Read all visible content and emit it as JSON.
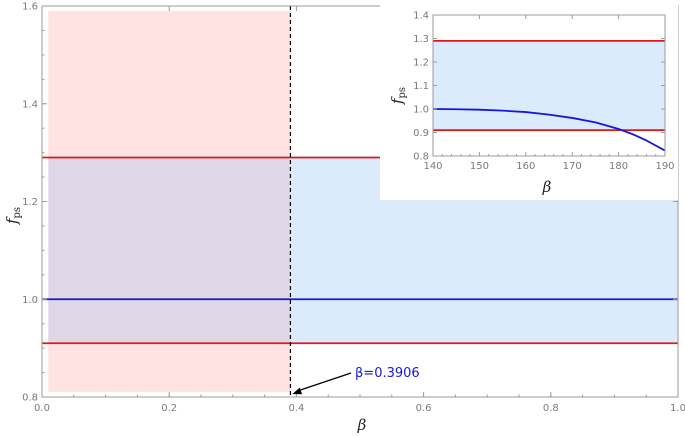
{
  "colors": {
    "pink_region": "#ffe3e3",
    "blue_region": "#dcebfb",
    "overlap_region": "#dfd7e6",
    "red_line": "#e0161b",
    "blue_line": "#1717d6",
    "axis": "#9b9b9b",
    "annotation": "#1717d6"
  },
  "chart_data": [
    {
      "id": "main",
      "type": "line",
      "xlabel": "β",
      "ylabel": "f",
      "ylabel_sub": "ps",
      "xlim": [
        0.0,
        1.0
      ],
      "ylim": [
        0.8,
        1.6
      ],
      "xticks": [
        "0.0",
        "0.2",
        "0.4",
        "0.6",
        "0.8",
        "1.0"
      ],
      "yticks": [
        "0.8",
        "1.0",
        "1.2",
        "1.4",
        "1.6"
      ],
      "shaded_regions": [
        {
          "x": [
            0.01,
            0.3906
          ],
          "y": [
            0.81,
            1.59
          ],
          "color": "pink"
        },
        {
          "x": [
            0.01,
            1.0
          ],
          "y": [
            0.91,
            1.29
          ],
          "color": "blue"
        }
      ],
      "hlines": [
        {
          "y": 1.29,
          "color": "red"
        },
        {
          "y": 0.91,
          "color": "red"
        }
      ],
      "vline": {
        "x": 0.3906,
        "style": "dashed"
      },
      "series": [
        {
          "x": [
            0.0,
            1.0
          ],
          "y": [
            1.0,
            1.0
          ],
          "color": "blue"
        }
      ],
      "annotation": {
        "label": "β=0.3906",
        "x": 0.3906,
        "y": 0.8,
        "text_at": [
          0.5,
          0.845
        ]
      }
    },
    {
      "id": "inset",
      "type": "line",
      "xlabel": "β",
      "ylabel": "f",
      "ylabel_sub": "ps",
      "xlim": [
        140,
        190
      ],
      "ylim": [
        0.8,
        1.4
      ],
      "xticks": [
        "140",
        "150",
        "160",
        "170",
        "180",
        "190"
      ],
      "yticks": [
        "0.8",
        "0.9",
        "1.0",
        "1.1",
        "1.2",
        "1.3",
        "1.4"
      ],
      "shaded_region": {
        "y": [
          0.91,
          1.29
        ],
        "color": "blue"
      },
      "hlines": [
        {
          "y": 1.29,
          "color": "red"
        },
        {
          "y": 0.91,
          "color": "red"
        }
      ],
      "series": [
        {
          "x": [
            140,
            145,
            150,
            155,
            160,
            165,
            170,
            175,
            180,
            183,
            186,
            190
          ],
          "y": [
            1.0,
            0.999,
            0.997,
            0.993,
            0.987,
            0.976,
            0.962,
            0.943,
            0.915,
            0.893,
            0.866,
            0.823
          ],
          "color": "blue"
        }
      ]
    }
  ]
}
